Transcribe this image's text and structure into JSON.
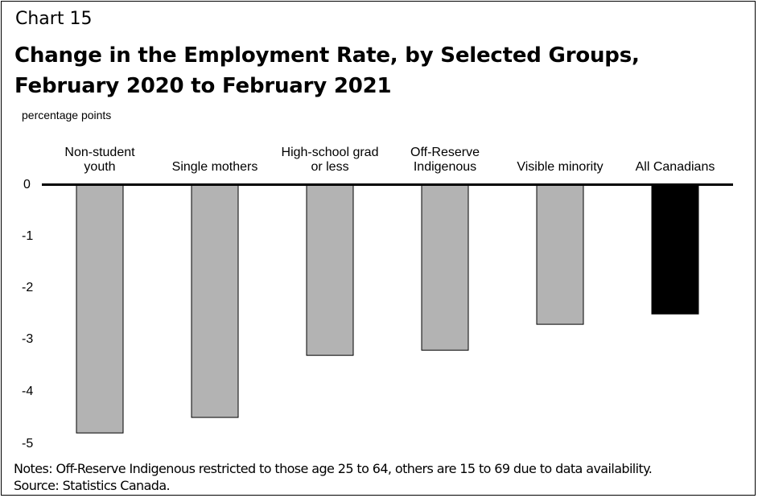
{
  "chart_number": "Chart 15",
  "title_line_1": "Change in the Employment Rate, by Selected Groups,",
  "title_line_2": "February 2020 to February 2021",
  "units": "percentage points",
  "notes": "Notes: Off-Reserve Indigenous restricted to those age 25 to 64, others are 15 to 69 due to data availability.",
  "source": "Source: Statistics Canada.",
  "colors": {
    "bar": "#b3b3b3",
    "highlight": "#000000",
    "axis": "#000000"
  },
  "chart_data": {
    "type": "bar",
    "title": "Change in the Employment Rate, by Selected Groups, February 2020 to February 2021",
    "ylabel": "percentage points",
    "xlabel": "",
    "categories": [
      "Non-student\nyouth",
      "Single mothers",
      "High-school grad\nor less",
      "Off-Reserve\nIndigenous",
      "Visible minority",
      "All Canadians"
    ],
    "values": [
      -4.8,
      -4.5,
      -3.3,
      -3.2,
      -2.7,
      -2.5
    ],
    "highlight_index": 5,
    "ylim": [
      -5,
      0
    ],
    "yticks": [
      "0",
      "-1",
      "-2",
      "-3",
      "-4",
      "-5"
    ],
    "grid": false,
    "legend": "none"
  }
}
